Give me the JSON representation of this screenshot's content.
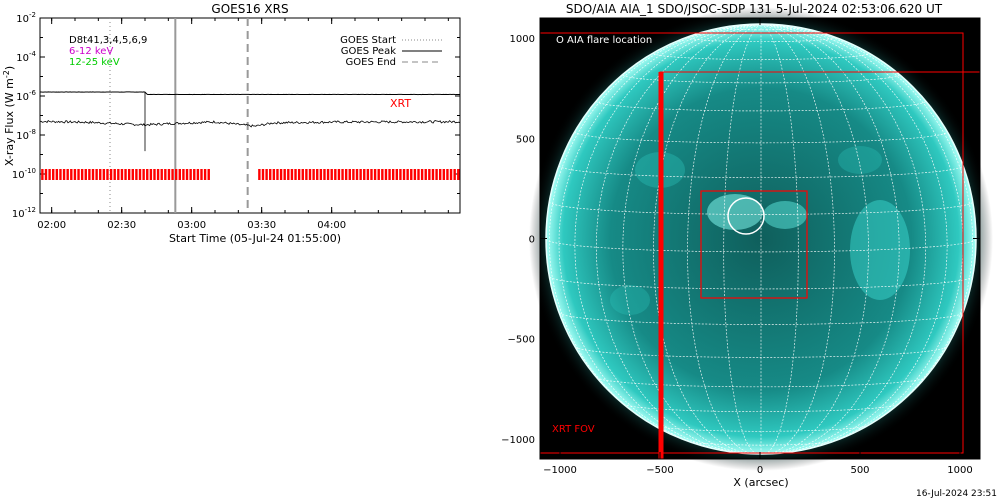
{
  "left_panel": {
    "title": "GOES16 XRS",
    "ylabel_prefix": "X-ray Flux (W m",
    "ylabel_exp": "-2",
    "ylabel_suffix": ")",
    "xlabel": "Start Time (05-Jul-24 01:55:00)",
    "y_ticks": [
      {
        "base": "10",
        "exp": "-2"
      },
      {
        "base": "10",
        "exp": "-4"
      },
      {
        "base": "10",
        "exp": "-6"
      },
      {
        "base": "10",
        "exp": "-8"
      },
      {
        "base": "10",
        "exp": "-10"
      },
      {
        "base": "10",
        "exp": "-12"
      }
    ],
    "x_ticks": [
      "02:00",
      "02:30",
      "03:00",
      "03:30",
      "04:00"
    ],
    "legend_left": [
      {
        "label": "D8t41,3,4,5,6,9",
        "color": "#000000"
      },
      {
        "label": "6-12 keV",
        "color": "#cc00cc"
      },
      {
        "label": "12-25 keV",
        "color": "#00cc00"
      }
    ],
    "legend_right": [
      {
        "label": "GOES Start",
        "style": "dotted"
      },
      {
        "label": "GOES Peak",
        "style": "solid"
      },
      {
        "label": "GOES End",
        "style": "dashed"
      }
    ],
    "xrt_label": "XRT",
    "accent_color": "#ff0000"
  },
  "right_panel": {
    "title": "SDO/AIA AIA_1 SDO/JSOC-SDP 131  5-Jul-2024 02:53:06.620 UT",
    "xlabel": "X (arcsec)",
    "flare_legend": "O AIA flare location",
    "fov_label": "XRT FOV",
    "x_ticks": [
      "−1000",
      "−500",
      "0",
      "500",
      "1000"
    ],
    "y_ticks": [
      "1000",
      "500",
      "0",
      "−500",
      "−1000"
    ],
    "sun_color": "#1a9f9a",
    "grid_color": "#ffffff",
    "fov_color": "#ff0000"
  },
  "footer_timestamp": "16-Jul-2024 23:51",
  "chart_data": [
    {
      "type": "line",
      "title": "GOES16 XRS",
      "xlabel": "Start Time (05-Jul-24 01:55:00)",
      "ylabel": "X-ray Flux (W m^-2)",
      "y_scale": "log",
      "ylim": [
        1e-12,
        0.01
      ],
      "xlim": [
        "01:55",
        "04:55"
      ],
      "series": [
        {
          "name": "upper channel",
          "x": [
            "01:55",
            "02:40",
            "02:41",
            "04:55"
          ],
          "values": [
            1.6e-06,
            1.6e-06,
            1.2e-06,
            1.2e-06
          ]
        },
        {
          "name": "lower channel",
          "x": [
            "01:55",
            "02:15",
            "02:40",
            "02:50",
            "03:10",
            "03:27",
            "03:35",
            "04:00",
            "04:55"
          ],
          "values": [
            5e-08,
            4.5e-08,
            3.3e-08,
            3.8e-08,
            4.7e-08,
            2.8e-08,
            4.2e-08,
            4.6e-08,
            4.8e-08
          ]
        }
      ],
      "events": {
        "goes_start": "02:25",
        "goes_peak": "02:53",
        "goes_end": "03:24"
      },
      "xrt_coverage": [
        [
          "01:55",
          "03:07"
        ],
        [
          "03:28",
          "04:55"
        ]
      ],
      "legend": [
        "GOES Start",
        "GOES Peak",
        "GOES End"
      ]
    },
    {
      "type": "scatter",
      "title": "SDO/AIA AIA_1 SDO/JSOC-SDP 131  5-Jul-2024 02:53:06.620 UT",
      "xlabel": "X (arcsec)",
      "xlim": [
        -1100,
        1100
      ],
      "ylim": [
        -1100,
        1100
      ],
      "solar_radius_arcsec": 945,
      "flare_location": [
        -75,
        115
      ],
      "xrt_fov_boxes": [
        {
          "x0": -1100,
          "x1": 1000,
          "y0": -1065,
          "y1": 1030
        },
        {
          "x0": -500,
          "x1": 1100,
          "y0": -1100,
          "y1": 830
        },
        {
          "x0": -285,
          "x1": 235,
          "y0": -295,
          "y1": 240
        }
      ],
      "xrt_fov_edge_x": -500
    }
  ]
}
